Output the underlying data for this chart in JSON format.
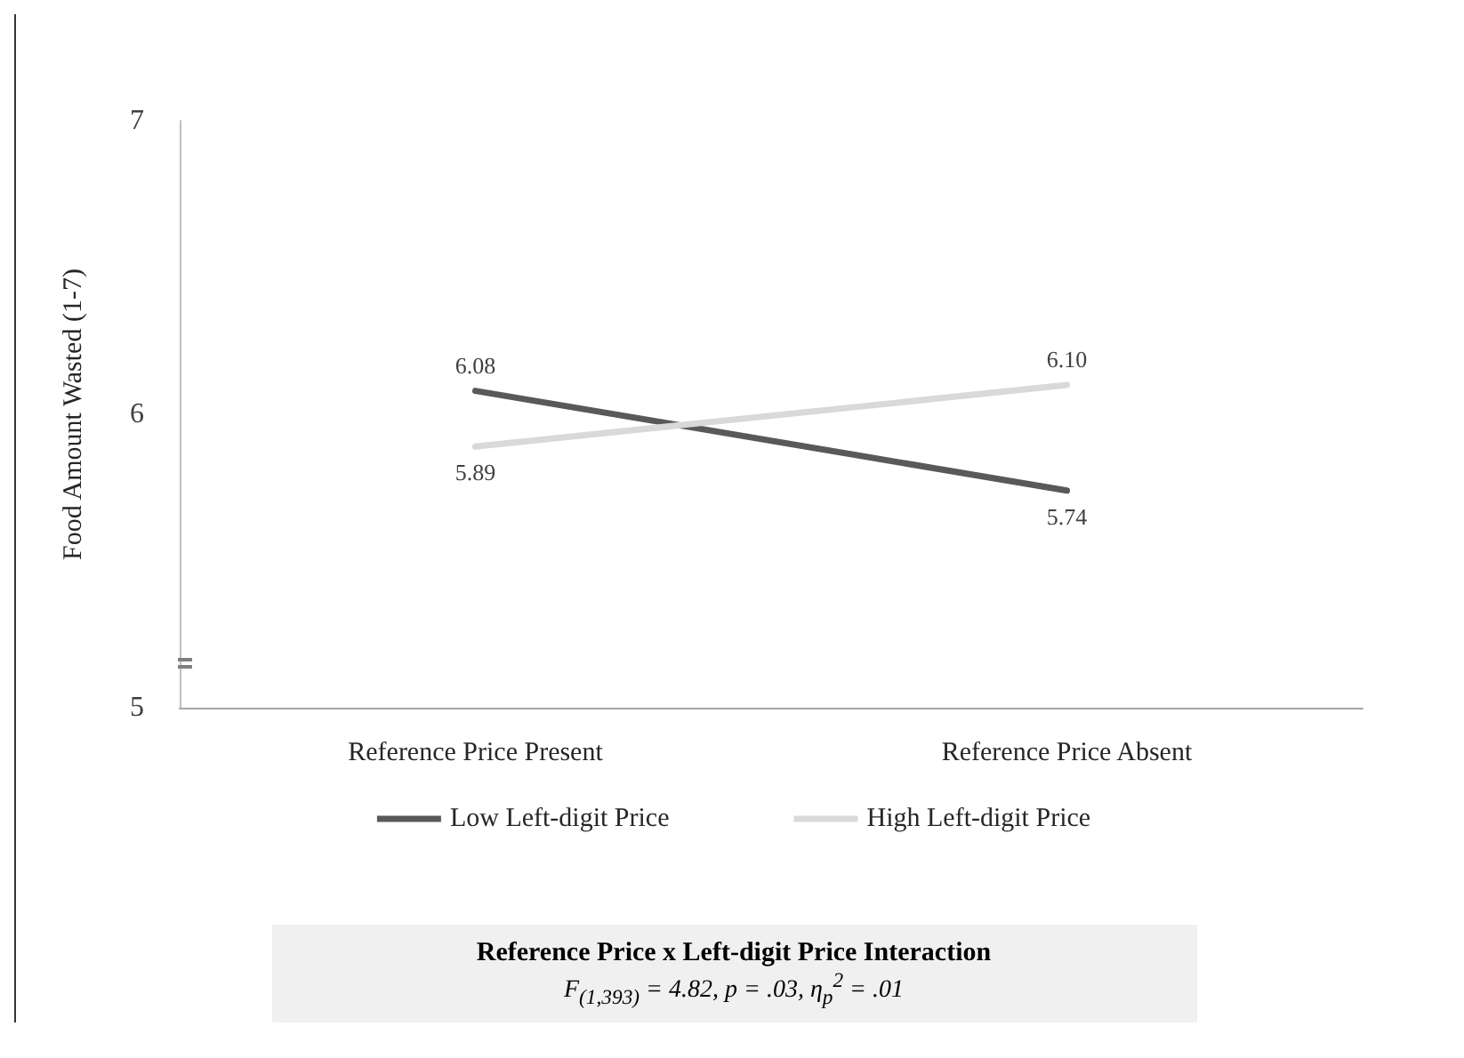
{
  "chart_data": {
    "type": "line",
    "ylabel": "Food Amount Wasted (1-7)",
    "categories": [
      "Reference Price Present",
      "Reference Price Absent"
    ],
    "series": [
      {
        "name": "Low Left-digit Price",
        "color": "#595959",
        "values": [
          6.08,
          5.74
        ],
        "value_labels": [
          "6.08",
          "5.74"
        ]
      },
      {
        "name": "High Left-digit Price",
        "color": "#d9d9d9",
        "values": [
          5.89,
          6.1
        ],
        "value_labels": [
          "5.89",
          "6.10"
        ]
      }
    ],
    "ylim": [
      5,
      7
    ],
    "yticks": [
      5,
      6,
      7
    ],
    "grid": false,
    "legend": "bottom",
    "marker": "none",
    "line_style": "solid",
    "annotations": [
      "Reference Price x Left-digit Price Interaction",
      "F$_{(1,393)}$ = 4.82, p = .03, η$_{p}$$^{2}$ = .01"
    ]
  }
}
